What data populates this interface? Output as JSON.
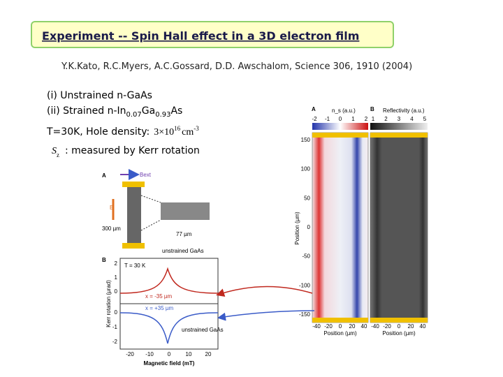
{
  "header": {
    "title": "Experiment -- Spin Hall effect in a 3D electron film"
  },
  "citation": "Y.K.Kato, R.C.Myers, A.C.Gossard, D.D. Awschalom, Science 306, 1910 (2004)",
  "samples": [
    {
      "prefix": "(i) Unstrained n-GaAs"
    },
    {
      "prefix": "(ii) Strained n-In",
      "sub1": "0.07",
      "mid": "Ga",
      "sub2": "0.93",
      "suffix": "As"
    }
  ],
  "conditions": {
    "label": "T=30K, Hole density:",
    "base": "3×10",
    "exp": "16",
    "unit": "cm",
    "unit_exp": "-3"
  },
  "measurement": {
    "symbol": "S",
    "symbol_sub": "z",
    "text": ": measured by Kerr rotation"
  },
  "figure_right": {
    "panel_a": "A",
    "panel_b": "B",
    "colorbar_a_label": "n_s (a.u.)",
    "colorbar_b_label": "Reflectivity (a.u.)",
    "colorbar_a_ticks": [
      -2,
      -1,
      0,
      1,
      2
    ],
    "colorbar_b_ticks": [
      1,
      2,
      3,
      4,
      5
    ],
    "y_label": "Position (µm)",
    "yticks": [
      150,
      100,
      50,
      0,
      -50,
      -100,
      -150
    ],
    "x_label": "Position (µm)",
    "xticks": [
      -40,
      -20,
      0,
      20,
      40
    ]
  },
  "figure_left": {
    "panel_a": "A",
    "panel_b": "B",
    "field": "Bext",
    "efield": "E",
    "height": "300 µm",
    "width": "77 µm",
    "sample": "unstrained GaAs",
    "temp": "T = 30 K",
    "x_top": "x = -35 µm",
    "x_bottom": "x = +35 µm",
    "sample_b": "unstrained GaAs",
    "y_label": "Kerr rotation (µrad)",
    "yticks_top": [
      2,
      1,
      0
    ],
    "yticks_bottom": [
      0,
      -1,
      -2
    ],
    "x_label": "Magnetic field (mT)",
    "xticks": [
      -20,
      -10,
      0,
      10,
      20
    ]
  }
}
